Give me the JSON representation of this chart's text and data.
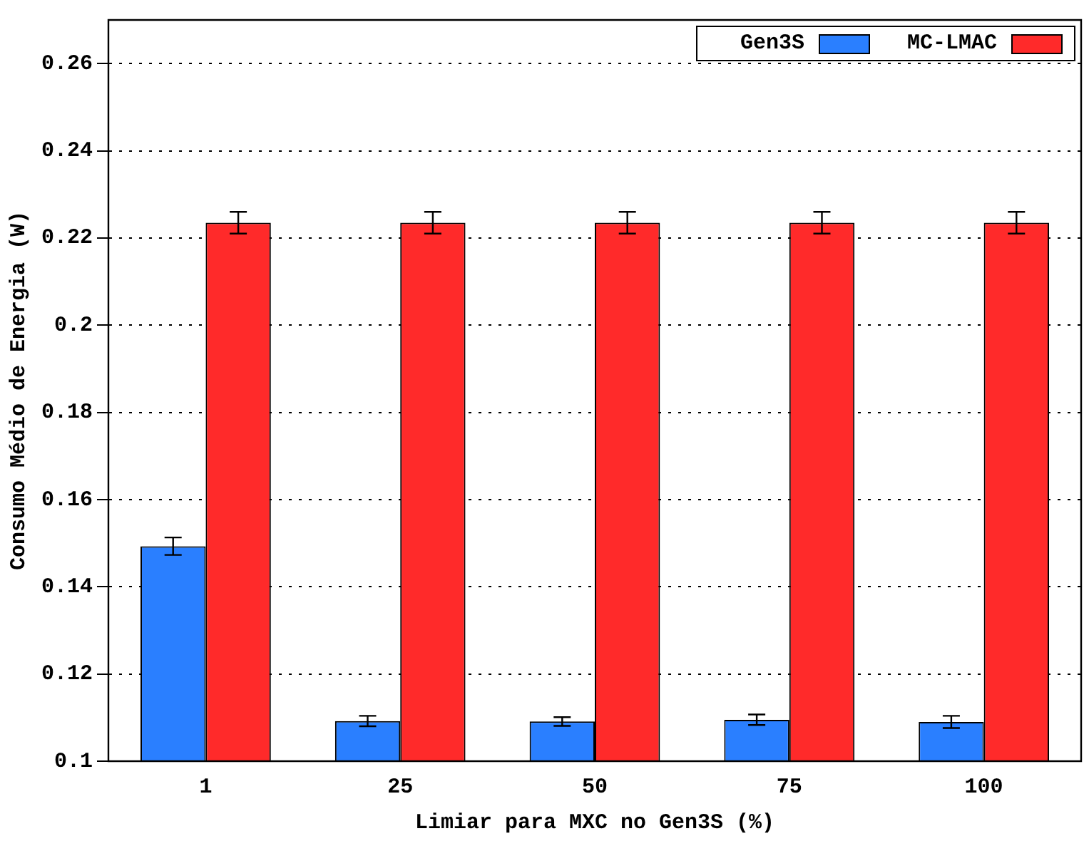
{
  "chart_data": {
    "type": "bar",
    "xlabel": "Limiar para MXC no Gen3S (%)",
    "ylabel": "Consumo Médio de Energia (W)",
    "categories": [
      "1",
      "25",
      "50",
      "75",
      "100"
    ],
    "series": [
      {
        "name": "Gen3S",
        "color": "#2a7fff",
        "values": [
          0.1493,
          0.1092,
          0.1091,
          0.1095,
          0.109
        ],
        "errors": [
          0.002,
          0.0012,
          0.001,
          0.0012,
          0.0014
        ]
      },
      {
        "name": "MC-LMAC",
        "color": "#ff2a2a",
        "values": [
          0.2235,
          0.2235,
          0.2235,
          0.2235,
          0.2235
        ],
        "errors": [
          0.0025,
          0.0025,
          0.0025,
          0.0025,
          0.0025
        ]
      }
    ],
    "ylim": [
      0.1,
      0.27
    ],
    "yticks": [
      0.1,
      0.12,
      0.14,
      0.16,
      0.18,
      0.2,
      0.22,
      0.24,
      0.26
    ],
    "grid": "y",
    "legend": "top right"
  }
}
